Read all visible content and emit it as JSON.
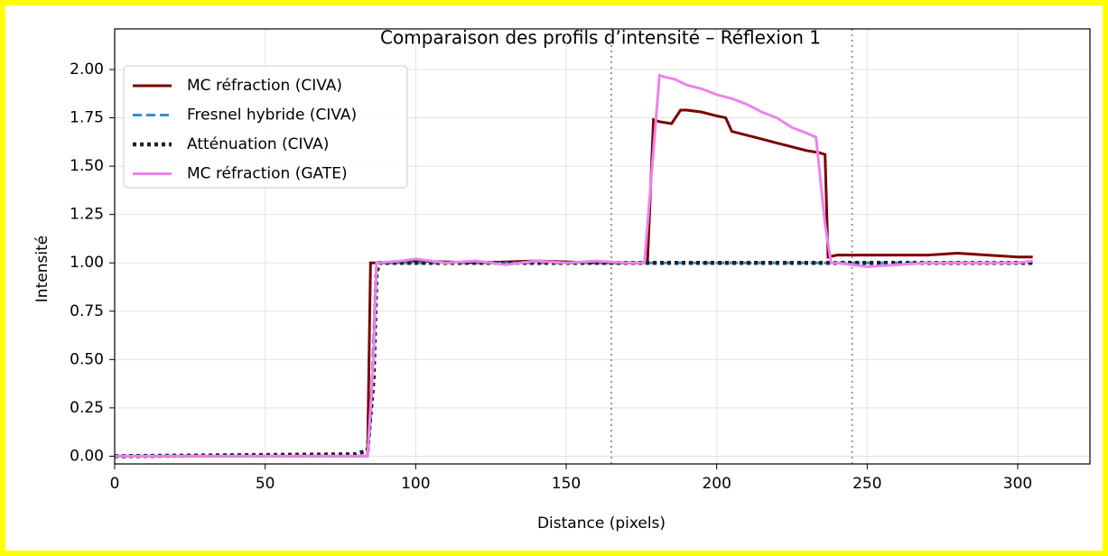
{
  "chart_data": {
    "type": "line",
    "title": "Comparaison des profils d’intensité – Réflexion 1",
    "xlabel": "Distance (pixels)",
    "ylabel": "Intensité",
    "xlim": [
      0,
      324
    ],
    "ylim": [
      -0.04,
      2.21
    ],
    "xticks": [
      0,
      50,
      100,
      150,
      200,
      250,
      300
    ],
    "yticks": [
      {
        "value": 0,
        "label": "0.00"
      },
      {
        "value": 0.25,
        "label": "0.25"
      },
      {
        "value": 0.5,
        "label": "0.50"
      },
      {
        "value": 0.75,
        "label": "0.75"
      },
      {
        "value": 1,
        "label": "1.00"
      },
      {
        "value": 1.25,
        "label": "1.25"
      },
      {
        "value": 1.5,
        "label": "1.50"
      },
      {
        "value": 1.75,
        "label": "1.75"
      },
      {
        "value": 2,
        "label": "2.00"
      }
    ],
    "grid": true,
    "legend": "upper left",
    "vlines": [
      165,
      245
    ],
    "vline_color": "#999999",
    "series": [
      {
        "name": "MC réfraction (CIVA)",
        "color": "#7b0000",
        "linestyle": "solid",
        "x": [
          0,
          40,
          84,
          85,
          90,
          100,
          120,
          140,
          160,
          177,
          179,
          181,
          185,
          188,
          190,
          195,
          200,
          203,
          205,
          210,
          215,
          220,
          225,
          230,
          234,
          236,
          237,
          240,
          250,
          260,
          270,
          280,
          290,
          300,
          305
        ],
        "values": [
          0,
          0,
          0,
          1,
          1,
          1.01,
          1,
          1.01,
          1,
          1,
          1.74,
          1.73,
          1.72,
          1.79,
          1.79,
          1.78,
          1.76,
          1.75,
          1.68,
          1.66,
          1.64,
          1.62,
          1.6,
          1.58,
          1.57,
          1.56,
          1.03,
          1.04,
          1.04,
          1.04,
          1.04,
          1.05,
          1.04,
          1.03,
          1.03
        ]
      },
      {
        "name": "Fresnel hybride (CIVA)",
        "color": "#2b8fe0",
        "linestyle": "dashed",
        "x": [
          0,
          84,
          85,
          87,
          150,
          200,
          250,
          305
        ],
        "values": [
          0,
          0,
          0.2,
          1,
          1,
          1,
          1,
          1
        ]
      },
      {
        "name": "Atténuation (CIVA)",
        "color": "#222222",
        "linestyle": "dotted",
        "x": [
          0,
          80,
          84,
          86,
          87,
          88,
          150,
          200,
          250,
          305
        ],
        "values": [
          0,
          0.01,
          0.03,
          0.4,
          0.95,
          1,
          1,
          1,
          1,
          1
        ]
      },
      {
        "name": "MC réfraction (GATE)",
        "color": "#ee82ee",
        "linestyle": "solid",
        "x": [
          0,
          84,
          86,
          87,
          95,
          100,
          110,
          120,
          130,
          140,
          150,
          160,
          170,
          176,
          181,
          183,
          186,
          190,
          195,
          200,
          205,
          210,
          215,
          220,
          225,
          230,
          233,
          236,
          238,
          240,
          250,
          260,
          270,
          280,
          290,
          300,
          305
        ],
        "values": [
          0,
          0,
          0.5,
          1,
          1.01,
          1.02,
          1,
          1.01,
          0.99,
          1.01,
          1,
          1.01,
          1,
          1,
          1.97,
          1.96,
          1.95,
          1.92,
          1.9,
          1.87,
          1.85,
          1.82,
          1.78,
          1.75,
          1.7,
          1.67,
          1.65,
          1.2,
          1,
          1,
          0.98,
          0.99,
          1,
          1,
          1,
          1,
          1.01
        ]
      }
    ]
  }
}
